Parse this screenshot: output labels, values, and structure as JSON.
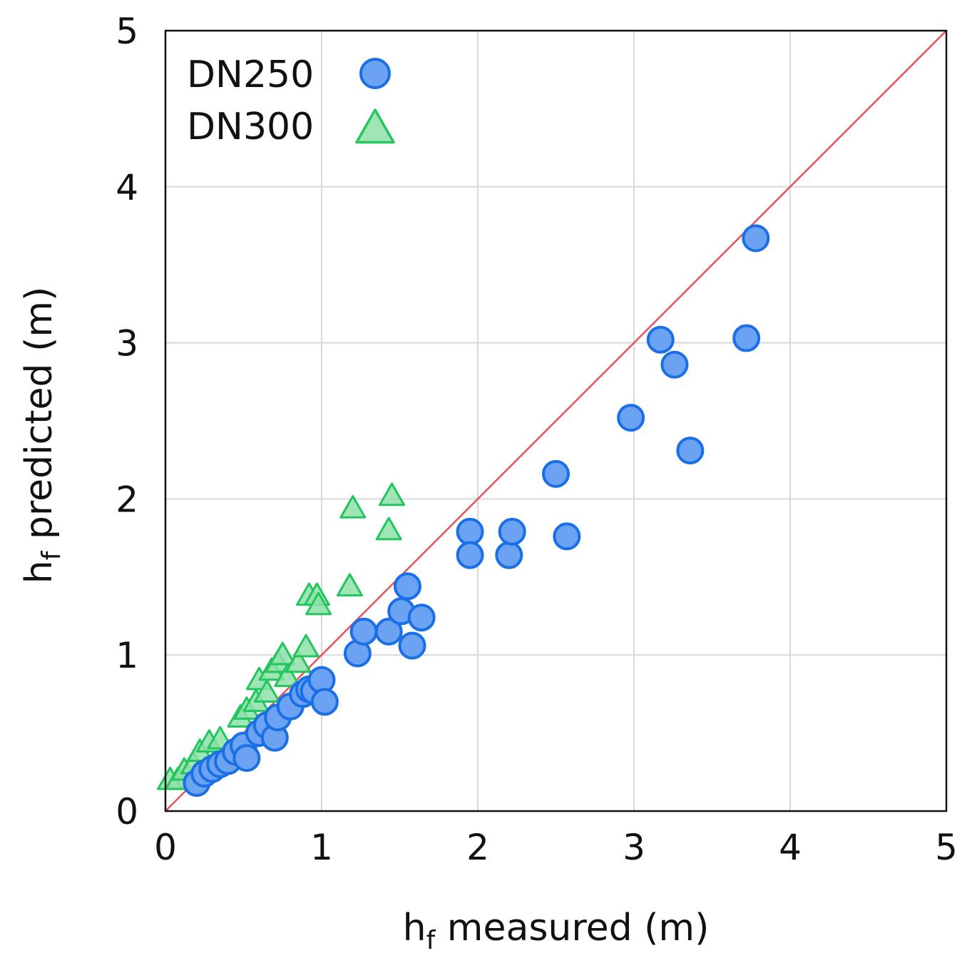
{
  "chart_data": {
    "type": "scatter",
    "xlabel": {
      "main": "h",
      "sub": "f",
      "rest": " measured (m)"
    },
    "ylabel": {
      "main": "h",
      "sub": "f",
      "rest": "  predicted (m)"
    },
    "xlim": [
      0,
      5
    ],
    "ylim": [
      0,
      5
    ],
    "xticks": [
      "0",
      "1",
      "2",
      "3",
      "4",
      "5"
    ],
    "yticks": [
      "0",
      "1",
      "2",
      "3",
      "4",
      "5"
    ],
    "grid": true,
    "legend_position": "top-left",
    "reference_line": {
      "label": "1:1",
      "from": [
        0,
        0
      ],
      "to": [
        5,
        5
      ],
      "color": "#e8505b"
    },
    "series": [
      {
        "name": "DN250",
        "marker": "circle",
        "fill": "#6ba3f2",
        "stroke": "#1a6fe6",
        "points": [
          [
            0.2,
            0.18
          ],
          [
            0.25,
            0.24
          ],
          [
            0.3,
            0.27
          ],
          [
            0.35,
            0.3
          ],
          [
            0.4,
            0.32
          ],
          [
            0.45,
            0.38
          ],
          [
            0.5,
            0.42
          ],
          [
            0.52,
            0.34
          ],
          [
            0.6,
            0.5
          ],
          [
            0.65,
            0.55
          ],
          [
            0.7,
            0.47
          ],
          [
            0.72,
            0.6
          ],
          [
            0.8,
            0.67
          ],
          [
            0.88,
            0.75
          ],
          [
            0.92,
            0.78
          ],
          [
            0.95,
            0.77
          ],
          [
            1.0,
            0.84
          ],
          [
            1.02,
            0.7
          ],
          [
            1.23,
            1.01
          ],
          [
            1.27,
            1.15
          ],
          [
            1.43,
            1.15
          ],
          [
            1.51,
            1.28
          ],
          [
            1.55,
            1.44
          ],
          [
            1.58,
            1.06
          ],
          [
            1.64,
            1.24
          ],
          [
            1.95,
            1.79
          ],
          [
            1.95,
            1.64
          ],
          [
            2.2,
            1.64
          ],
          [
            2.22,
            1.79
          ],
          [
            2.5,
            2.16
          ],
          [
            2.57,
            1.76
          ],
          [
            2.98,
            2.52
          ],
          [
            3.17,
            3.02
          ],
          [
            3.26,
            2.86
          ],
          [
            3.36,
            2.31
          ],
          [
            3.72,
            3.03
          ],
          [
            3.78,
            3.67
          ]
        ]
      },
      {
        "name": "DN300",
        "marker": "triangle",
        "fill": "#8ee0a8",
        "stroke": "#22c55e",
        "points": [
          [
            0.03,
            0.2
          ],
          [
            0.08,
            0.2
          ],
          [
            0.12,
            0.26
          ],
          [
            0.18,
            0.3
          ],
          [
            0.22,
            0.38
          ],
          [
            0.28,
            0.44
          ],
          [
            0.35,
            0.46
          ],
          [
            0.48,
            0.6
          ],
          [
            0.52,
            0.65
          ],
          [
            0.58,
            0.7
          ],
          [
            0.6,
            0.84
          ],
          [
            0.65,
            0.76
          ],
          [
            0.68,
            0.9
          ],
          [
            0.72,
            0.95
          ],
          [
            0.75,
            1.0
          ],
          [
            0.78,
            0.86
          ],
          [
            0.85,
            0.95
          ],
          [
            0.9,
            1.05
          ],
          [
            0.92,
            1.38
          ],
          [
            0.97,
            1.38
          ],
          [
            0.98,
            1.32
          ],
          [
            1.18,
            1.44
          ],
          [
            1.2,
            1.94
          ],
          [
            1.43,
            1.8
          ],
          [
            1.45,
            2.02
          ]
        ]
      }
    ]
  }
}
